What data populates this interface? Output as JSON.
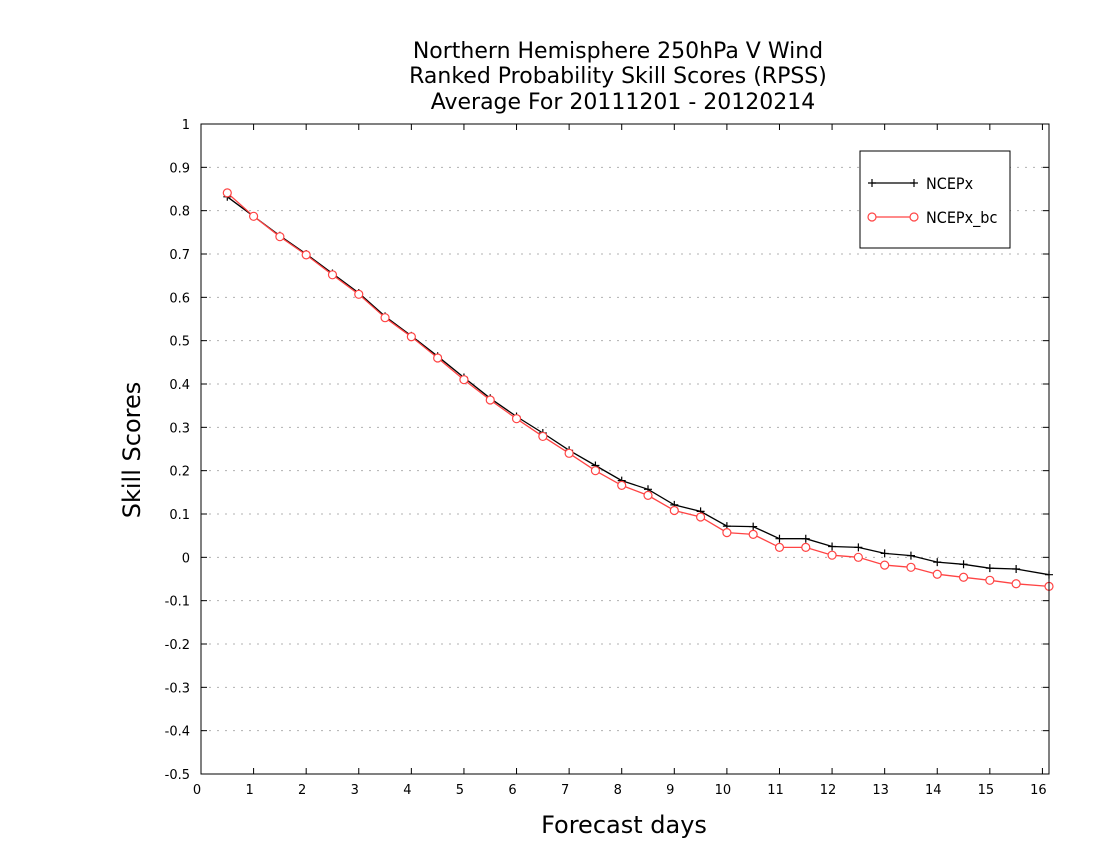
{
  "chart_data": {
    "type": "line",
    "title_lines": [
      "Northern Hemisphere 250hPa V Wind",
      "Ranked Probability Skill Scores (RPSS)",
      "Average For 20111201 - 20120214"
    ],
    "xlabel": "Forecast days",
    "ylabel": "Skill Scores",
    "xlim": [
      0,
      16.125
    ],
    "ylim": [
      -0.5,
      1
    ],
    "xticks": [
      0,
      1,
      2,
      3,
      4,
      5,
      6,
      7,
      8,
      9,
      10,
      11,
      12,
      13,
      14,
      15,
      16
    ],
    "yticks": [
      -0.5,
      -0.4,
      -0.3,
      -0.2,
      -0.1,
      0,
      0.1,
      0.2,
      0.3,
      0.4,
      0.5,
      0.6,
      0.7,
      0.8,
      0.9,
      1
    ],
    "ytick_labels": [
      "-0.5",
      "-0.4",
      "-0.3",
      "-0.2",
      "-0.1",
      "0",
      "0.1",
      "0.2",
      "0.3",
      "0.4",
      "0.5",
      "0.6",
      "0.7",
      "0.8",
      "0.9",
      "1"
    ],
    "grid": true,
    "legend_position": "top-right",
    "x": [
      0.5,
      1,
      1.5,
      2,
      2.5,
      3,
      3.5,
      4,
      4.5,
      5,
      5.5,
      6,
      6.5,
      7,
      7.5,
      8,
      8.5,
      9,
      9.5,
      10,
      10.5,
      11,
      11.5,
      12,
      12.5,
      13,
      13.5,
      14,
      14.5,
      15,
      15.5,
      16.125
    ],
    "series": [
      {
        "name": "NCEPx",
        "color": "#000000",
        "marker": "plus",
        "values": [
          0.832,
          0.787,
          0.742,
          0.7,
          0.655,
          0.61,
          0.556,
          0.511,
          0.464,
          0.415,
          0.367,
          0.325,
          0.287,
          0.247,
          0.212,
          0.177,
          0.157,
          0.121,
          0.106,
          0.072,
          0.071,
          0.043,
          0.043,
          0.025,
          0.023,
          0.009,
          0.004,
          -0.011,
          -0.016,
          -0.025,
          -0.027,
          -0.04
        ]
      },
      {
        "name": "NCEPx_bc",
        "color": "#ff4444",
        "marker": "circle",
        "values": [
          0.841,
          0.787,
          0.74,
          0.698,
          0.652,
          0.607,
          0.553,
          0.509,
          0.46,
          0.41,
          0.363,
          0.32,
          0.279,
          0.24,
          0.2,
          0.166,
          0.143,
          0.108,
          0.093,
          0.057,
          0.053,
          0.023,
          0.023,
          0.005,
          0.0,
          -0.018,
          -0.023,
          -0.039,
          -0.046,
          -0.053,
          -0.061,
          -0.067
        ]
      }
    ]
  }
}
